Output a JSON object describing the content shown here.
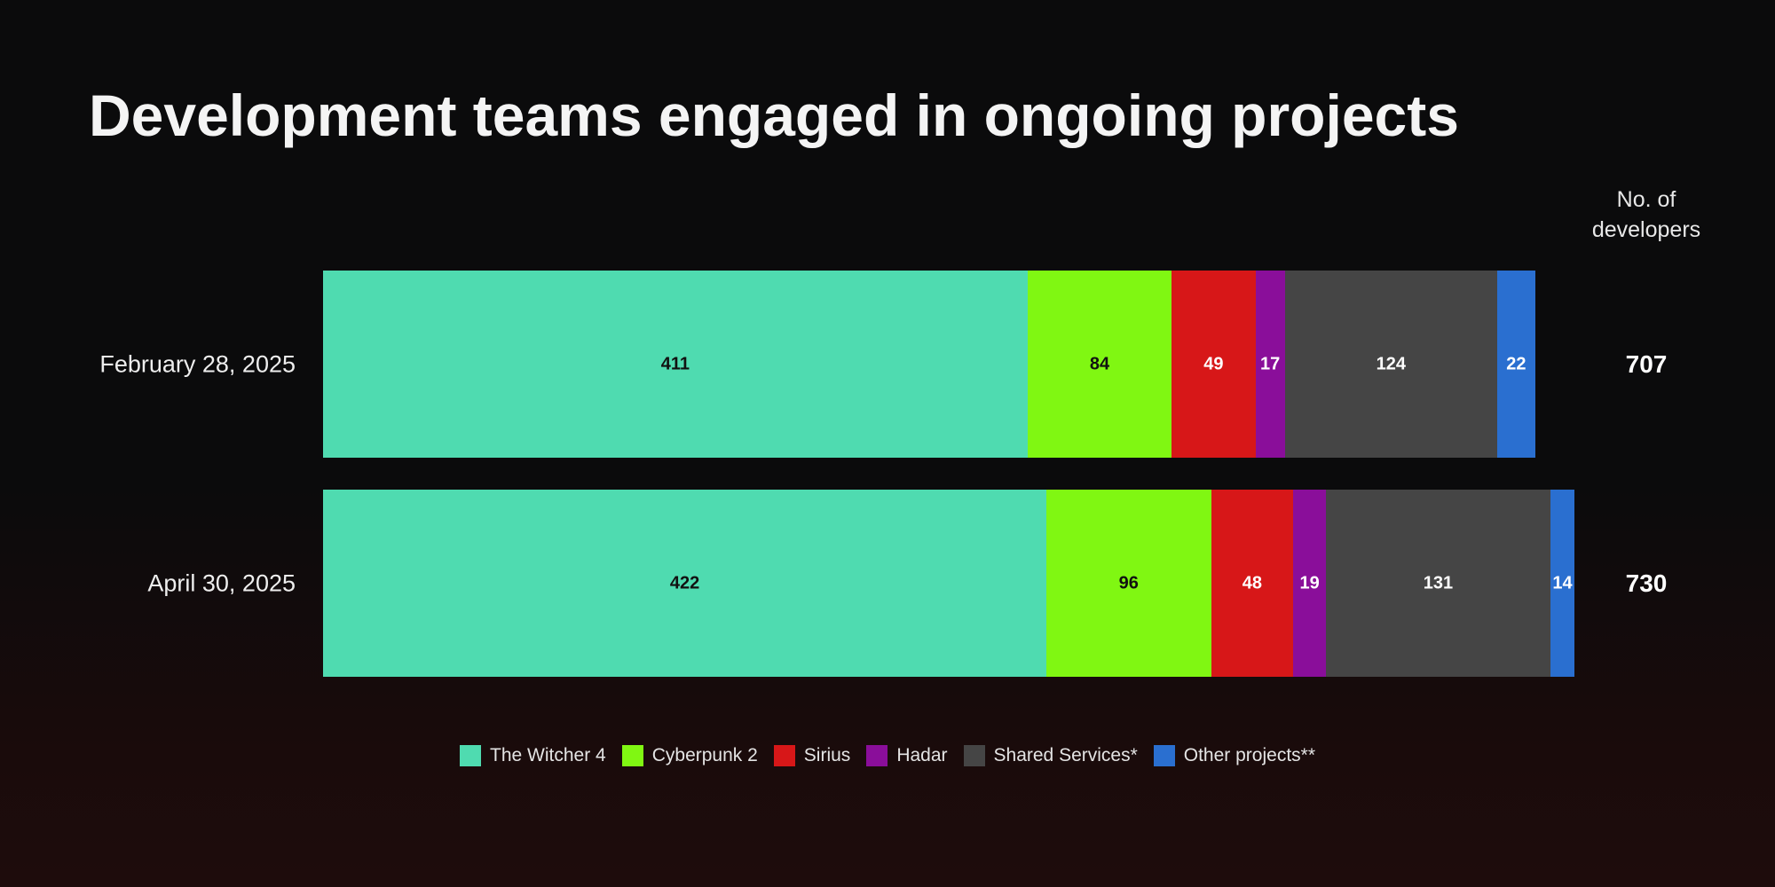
{
  "title": "Development teams engaged in ongoing projects",
  "total_header": [
    "No. of",
    "developers"
  ],
  "colors": {
    "The Witcher 4": "#4fdbb0",
    "Cyberpunk 2": "#80f712",
    "Sirius": "#d71718",
    "Hadar": "#8a0e9a",
    "Shared Services*": "#454545",
    "Other projects**": "#2a6fd0"
  },
  "label_colors": {
    "The Witcher 4": "#111111",
    "Cyberpunk 2": "#111111",
    "Sirius": "#ffffff",
    "Hadar": "#ffffff",
    "Shared Services*": "#ffffff",
    "Other projects**": "#ffffff"
  },
  "chart_data": {
    "type": "bar",
    "orientation": "horizontal",
    "stacked": true,
    "categories": [
      "February 28, 2025",
      "April 30, 2025"
    ],
    "series": [
      {
        "name": "The Witcher 4",
        "values": [
          411,
          422
        ]
      },
      {
        "name": "Cyberpunk 2",
        "values": [
          84,
          96
        ]
      },
      {
        "name": "Sirius",
        "values": [
          49,
          48
        ]
      },
      {
        "name": "Hadar",
        "values": [
          17,
          19
        ]
      },
      {
        "name": "Shared Services*",
        "values": [
          124,
          131
        ]
      },
      {
        "name": "Other projects**",
        "values": [
          22,
          14
        ]
      }
    ],
    "totals": [
      707,
      730
    ],
    "xlim": [
      0,
      730
    ],
    "grid": false,
    "legend": "bottom"
  }
}
